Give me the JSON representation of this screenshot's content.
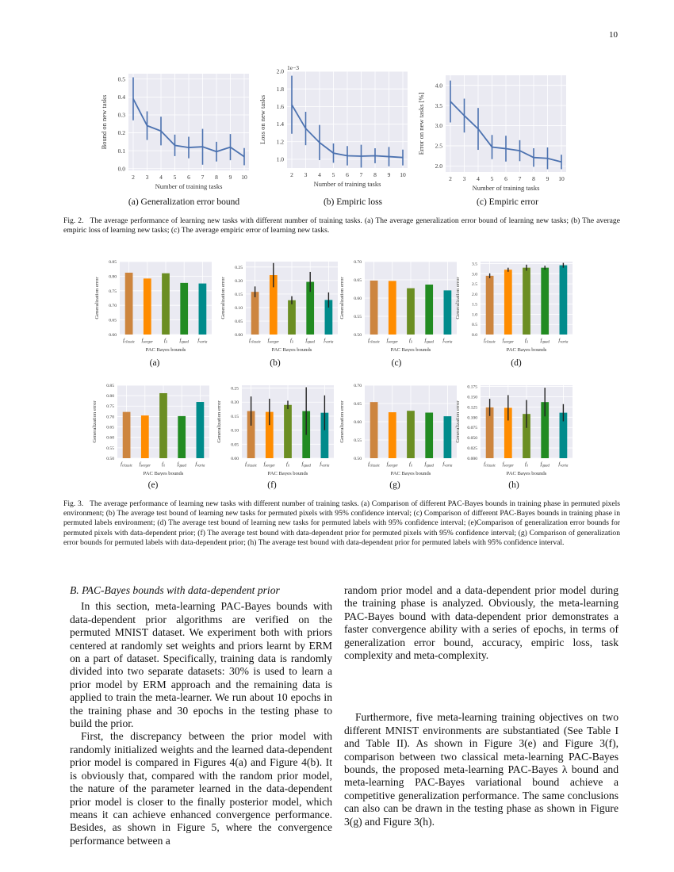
{
  "page_number": "10",
  "fig2": {
    "caption_label": "Fig. 2.",
    "caption": "The average performance of learning new tasks with different number of training tasks. (a) The average generalization error bound of learning new tasks; (b) The average empiric loss of learning new tasks; (c) The average empiric error of learning new tasks.",
    "subcaptions": [
      "(a) Generalization error bound",
      "(b) Empiric loss",
      "(c) Empiric error"
    ]
  },
  "fig3": {
    "caption_label": "Fig. 3.",
    "caption": "The average performance of learning new tasks with different number of training tasks. (a) Comparison of different PAC-Bayes bounds in training phase in permuted pixels environment; (b) The average test bound of learning new tasks for permuted pixels with 95% confidence interval; (c) Comparison of different PAC-Bayes bounds in training phase in permuted labels environment; (d) The average test bound of learning new tasks for permuted labels with 95% confidence interval; (e)Comparison of generalization error bounds for permuted pixels with data-dependent prior; (f) The average test bound with data-dependent prior for permuted pixels with 95% confidence interval; (g) Comparison of generalization error bounds for permuted labels with data-dependent prior; (h) The average test bound with data-dependent prior for permuted labels with 95% confidence interval.",
    "subcaptions": [
      "(a)",
      "(b)",
      "(c)",
      "(d)",
      "(e)",
      "(f)",
      "(g)",
      "(h)"
    ]
  },
  "section": {
    "heading": "B.  PAC-Bayes bounds with data-dependent prior",
    "left_paragraphs": [
      "In this section, meta-learning PAC-Bayes bounds with data-dependent prior algorithms are verified on the permuted MNIST dataset. We experiment both with priors centered at randomly set weights and priors learnt by ERM on a part of dataset. Specifically, training data is randomly divided into two separate datasets: 30% is used to learn a prior model by ERM approach and the remaining data is applied to train the meta-learner. We run about 10 epochs in the training phase and 30 epochs in the testing phase to build the prior.",
      "First, the discrepancy between the prior model with randomly initialized weights and the learned data-dependent prior model is compared in Figures 4(a) and Figure 4(b). It is obviously that, compared with the random prior model, the nature of the parameter learned in the data-dependent prior model is closer to the finally posterior model, which means it can achieve enhanced convergence performance. Besides, as shown in Figure 5, where the convergence performance between a"
    ],
    "right_paragraphs": [
      "random prior model and a data-dependent prior model during the training phase is analyzed. Obviously, the meta-learning PAC-Bayes bound with data-dependent prior demonstrates a faster convergence ability with a series of epochs, in terms of generalization error bound, accuracy, empiric loss, task complexity and meta-complexity.",
      "Furthermore, five meta-learning training objectives on two different MNIST environments are substantiated (See Table I and Table II). As shown in Figure 3(e) and Figure 3(f), comparison between two classical meta-learning PAC-Bayes bounds, the proposed meta-learning PAC-Bayes λ bound and meta-learning PAC-Bayes variational bound achieve a competitive generalization performance. The same conclusions can also can be drawn in the testing phase as shown in Figure 3(g) and Figure 3(h)."
    ]
  },
  "colors": {
    "plot_bg": "#eaeaf2",
    "grid": "#ffffff",
    "line": "#4c72b0",
    "errbar": "#222222",
    "bars": [
      "#cd853f",
      "#ff8c00",
      "#6b8e23",
      "#228b22",
      "#008b8b"
    ]
  },
  "chart_data": [
    {
      "id": "fig2a",
      "type": "line",
      "xlabel": "Number of training tasks",
      "ylabel": "Bound on new tasks",
      "x": [
        2,
        3,
        4,
        5,
        6,
        7,
        8,
        9,
        10
      ],
      "values": [
        0.39,
        0.24,
        0.21,
        0.13,
        0.118,
        0.122,
        0.095,
        0.12,
        0.067
      ],
      "errors": [
        0.12,
        0.08,
        0.08,
        0.06,
        0.06,
        0.1,
        0.055,
        0.073,
        0.048
      ],
      "ylim": [
        -0.01,
        0.53
      ],
      "yticks": [
        0.0,
        0.1,
        0.2,
        0.3,
        0.4,
        0.5
      ],
      "ytick_labels": [
        "0.0",
        "0.1",
        "0.2",
        "0.3",
        "0.4",
        "0.5"
      ],
      "grid": true
    },
    {
      "id": "fig2b",
      "type": "line",
      "xlabel": "Number of training tasks",
      "ylabel": "Loss on new tasks",
      "offset_label": "1e−3",
      "x": [
        2,
        3,
        4,
        5,
        6,
        7,
        8,
        9,
        10
      ],
      "values": [
        1.62,
        1.35,
        1.19,
        1.07,
        1.04,
        1.035,
        1.04,
        1.03,
        1.02
      ],
      "errors": [
        0.33,
        0.19,
        0.2,
        0.11,
        0.11,
        0.13,
        0.085,
        0.11,
        0.09
      ],
      "ylim": [
        0.9,
        2.0
      ],
      "yticks": [
        1.0,
        1.2,
        1.4,
        1.6,
        1.8,
        2.0
      ],
      "ytick_labels": [
        "1.0",
        "1.2",
        "1.4",
        "1.6",
        "1.8",
        "2.0"
      ],
      "grid": true
    },
    {
      "id": "fig2c",
      "type": "line",
      "xlabel": "Number of training tasks",
      "ylabel": "Error on new tasks [%]",
      "x": [
        2,
        3,
        4,
        5,
        6,
        7,
        8,
        9,
        10
      ],
      "values": [
        3.6,
        3.25,
        2.92,
        2.47,
        2.43,
        2.38,
        2.21,
        2.19,
        2.1
      ],
      "errors": [
        0.52,
        0.42,
        0.52,
        0.3,
        0.32,
        0.26,
        0.23,
        0.27,
        0.18
      ],
      "ylim": [
        1.85,
        4.25
      ],
      "yticks": [
        2.0,
        2.5,
        3.0,
        3.5,
        4.0
      ],
      "ytick_labels": [
        "2.0",
        "2.5",
        "3.0",
        "3.5",
        "4.0"
      ],
      "grid": true
    },
    {
      "id": "fig3a",
      "type": "bar",
      "xlabel": "PAC Bayes bounds",
      "ylabel": "Generalization error",
      "categories": [
        "f_classic",
        "f_seeger",
        "f_λ",
        "f_quad",
        "f_varia"
      ],
      "values": [
        0.812,
        0.792,
        0.81,
        0.777,
        0.775
      ],
      "ylim": [
        0.6,
        0.85
      ],
      "yticks": [
        0.6,
        0.65,
        0.7,
        0.75,
        0.8,
        0.85
      ],
      "ytick_labels": [
        "0.60",
        "0.65",
        "0.70",
        "0.75",
        "0.80",
        "0.85"
      ],
      "grid": true
    },
    {
      "id": "fig3b",
      "type": "bar",
      "xlabel": "PAC Bayes bounds",
      "ylabel": "Generalization error",
      "categories": [
        "f_classic",
        "f_seeger",
        "f_λ",
        "f_quad",
        "f_varia"
      ],
      "values": [
        0.158,
        0.22,
        0.127,
        0.195,
        0.128
      ],
      "errors": [
        0.02,
        0.045,
        0.015,
        0.037,
        0.028
      ],
      "ylim": [
        0,
        0.27
      ],
      "yticks": [
        0,
        0.05,
        0.1,
        0.15,
        0.2,
        0.25
      ],
      "ytick_labels": [
        "0.00",
        "0.05",
        "0.10",
        "0.15",
        "0.20",
        "0.25"
      ],
      "grid": true
    },
    {
      "id": "fig3c",
      "type": "bar",
      "xlabel": "PAC Bayes bounds",
      "ylabel": "Generalization error",
      "categories": [
        "f_classic",
        "f_seeger",
        "f_λ",
        "f_quad",
        "f_varia"
      ],
      "values": [
        0.648,
        0.647,
        0.627,
        0.637,
        0.621
      ],
      "ylim": [
        0.5,
        0.7
      ],
      "yticks": [
        0.5,
        0.55,
        0.6,
        0.65,
        0.7
      ],
      "ytick_labels": [
        "0.50",
        "0.55",
        "0.60",
        "0.65",
        "0.70"
      ],
      "grid": true
    },
    {
      "id": "fig3d",
      "type": "bar",
      "xlabel": "PAC Bayes bounds",
      "ylabel": "Generalization error",
      "categories": [
        "f_classic",
        "f_seeger",
        "f_λ",
        "f_quad",
        "f_varia"
      ],
      "values": [
        2.9,
        3.2,
        3.3,
        3.3,
        3.42
      ],
      "errors": [
        0.12,
        0.1,
        0.15,
        0.1,
        0.12
      ],
      "ylim": [
        0,
        3.6
      ],
      "yticks": [
        0,
        0.5,
        1,
        1.5,
        2,
        2.5,
        3,
        3.5
      ],
      "ytick_labels": [
        "0.0",
        "0.5",
        "1.0",
        "1.5",
        "2.0",
        "2.5",
        "3.0",
        "3.5"
      ],
      "grid": true
    },
    {
      "id": "fig3e",
      "type": "bar",
      "xlabel": "PAC Bayes bounds",
      "ylabel": "Generalization error",
      "categories": [
        "f_classic",
        "f_seeger",
        "f_λ",
        "f_quad",
        "f_varia"
      ],
      "values": [
        0.722,
        0.705,
        0.812,
        0.702,
        0.77
      ],
      "ylim": [
        0.5,
        0.85
      ],
      "yticks": [
        0.5,
        0.55,
        0.6,
        0.65,
        0.7,
        0.75,
        0.8,
        0.85
      ],
      "ytick_labels": [
        "0.50",
        "0.55",
        "0.60",
        "0.65",
        "0.70",
        "0.75",
        "0.80",
        "0.85"
      ],
      "grid": true
    },
    {
      "id": "fig3f",
      "type": "bar",
      "xlabel": "PAC Bayes bounds",
      "ylabel": "Generalization error",
      "categories": [
        "f_classic",
        "f_seeger",
        "f_λ",
        "f_quad",
        "f_varia"
      ],
      "values": [
        0.168,
        0.165,
        0.19,
        0.168,
        0.162
      ],
      "errors": [
        0.052,
        0.047,
        0.015,
        0.085,
        0.062
      ],
      "ylim": [
        0,
        0.26
      ],
      "yticks": [
        0,
        0.05,
        0.1,
        0.15,
        0.2,
        0.25
      ],
      "ytick_labels": [
        "0.00",
        "0.05",
        "0.10",
        "0.15",
        "0.20",
        "0.25"
      ],
      "grid": true
    },
    {
      "id": "fig3g",
      "type": "bar",
      "xlabel": "PAC Bayes bounds",
      "ylabel": "Generalization error",
      "categories": [
        "f_classic",
        "f_seeger",
        "f_λ",
        "f_quad",
        "f_varia"
      ],
      "values": [
        0.654,
        0.626,
        0.63,
        0.625,
        0.615
      ],
      "ylim": [
        0.5,
        0.7
      ],
      "yticks": [
        0.5,
        0.55,
        0.6,
        0.65,
        0.7
      ],
      "ytick_labels": [
        "0.50",
        "0.55",
        "0.60",
        "0.65",
        "0.70"
      ],
      "grid": true
    },
    {
      "id": "fig3h",
      "type": "bar",
      "xlabel": "PAC Bayes bounds",
      "ylabel": "Generalization error",
      "categories": [
        "f_classic",
        "f_seeger",
        "f_λ",
        "f_quad",
        "f_varia"
      ],
      "values": [
        0.124,
        0.123,
        0.108,
        0.137,
        0.111
      ],
      "errors": [
        0.021,
        0.031,
        0.034,
        0.035,
        0.021
      ],
      "ylim": [
        0,
        0.178
      ],
      "yticks": [
        0,
        0.025,
        0.05,
        0.075,
        0.1,
        0.125,
        0.15,
        0.175
      ],
      "ytick_labels": [
        "0.000",
        "0.025",
        "0.050",
        "0.075",
        "0.100",
        "0.125",
        "0.150",
        "0.175"
      ],
      "grid": true
    }
  ]
}
